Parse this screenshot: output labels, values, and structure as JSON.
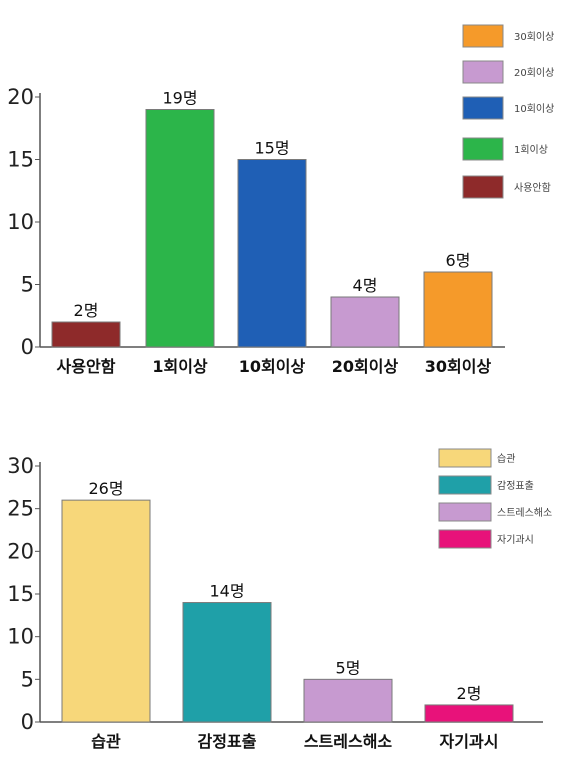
{
  "chart_data": [
    {
      "type": "bar",
      "categories": [
        "사용안함",
        "1회이상",
        "10회이상",
        "20회이상",
        "30회이상"
      ],
      "values": [
        2,
        19,
        15,
        4,
        6
      ],
      "data_labels": [
        "2명",
        "19명",
        "15명",
        "4명",
        "6명"
      ],
      "colors": [
        "#8e2a2a",
        "#2cb54a",
        "#1f5fb5",
        "#c79ad0",
        "#f59a2a"
      ],
      "ylim": [
        0,
        20
      ],
      "yticks": [
        "0",
        "5",
        "10",
        "15",
        "20"
      ],
      "legend": {
        "placement": "top-right",
        "entries": [
          {
            "label": "30회이상",
            "color": "#f59a2a"
          },
          {
            "label": "20회이상",
            "color": "#c79ad0"
          },
          {
            "label": "10회이상",
            "color": "#1f5fb5"
          },
          {
            "label": "1회이상",
            "color": "#2cb54a"
          },
          {
            "label": "사용안함",
            "color": "#8e2a2a"
          }
        ]
      },
      "grid": false
    },
    {
      "type": "bar",
      "categories": [
        "습관",
        "감정표출",
        "스트레스해소",
        "자기과시"
      ],
      "values": [
        26,
        14,
        5,
        2
      ],
      "data_labels": [
        "26명",
        "14명",
        "5명",
        "2명"
      ],
      "colors": [
        "#f7d77a",
        "#1fa0a8",
        "#c79ad0",
        "#e8127a"
      ],
      "ylim": [
        0,
        30
      ],
      "yticks": [
        "0",
        "5",
        "10",
        "15",
        "20",
        "25",
        "30"
      ],
      "legend": {
        "placement": "top-right",
        "entries": [
          {
            "label": "습관",
            "color": "#f7d77a"
          },
          {
            "label": "감정표출",
            "color": "#1fa0a8"
          },
          {
            "label": "스트레스해소",
            "color": "#c79ad0"
          },
          {
            "label": "자기과시",
            "color": "#e8127a"
          }
        ]
      },
      "grid": false
    }
  ]
}
